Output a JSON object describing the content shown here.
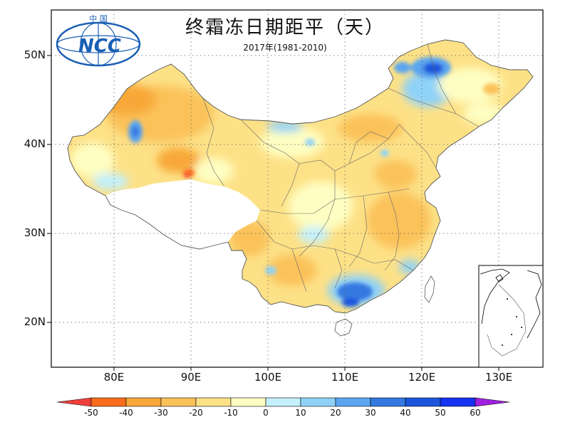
{
  "map": {
    "title": "终霜冻日期距平（天）",
    "subtitle": "2017年(1981-2010)",
    "logo": {
      "org_text": "中 国",
      "acronym": "NCC"
    },
    "lat_labels": [
      "50N",
      "40N",
      "30N",
      "20N"
    ],
    "lon_labels": [
      "80E",
      "90E",
      "100E",
      "110E",
      "120E",
      "130E"
    ]
  },
  "legend": {
    "ticks": [
      "-50",
      "-40",
      "-30",
      "-20",
      "-10",
      "0",
      "10",
      "20",
      "30",
      "40",
      "50",
      "60"
    ],
    "colors": [
      "#f0403c",
      "#fb6d1c",
      "#f8a838",
      "#fbc25a",
      "#fde187",
      "#fefec2",
      "#c4f0fb",
      "#8fd2f8",
      "#5aa5f0",
      "#3478e0",
      "#1c55dc",
      "#1432f0",
      "#a020e0"
    ]
  }
}
